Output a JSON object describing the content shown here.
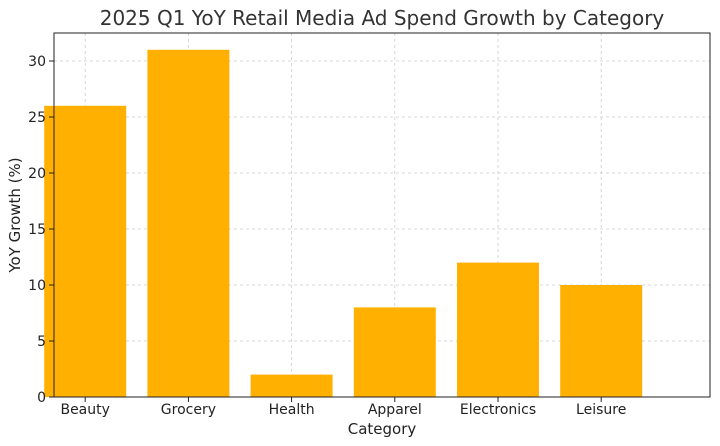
{
  "chart_data": {
    "type": "bar",
    "title": "2025 Q1 YoY Retail Media Ad Spend Growth by Category",
    "xlabel": "Category",
    "ylabel": "YoY Growth (%)",
    "categories": [
      "Beauty",
      "Grocery",
      "Health",
      "Apparel",
      "Electronics",
      "Leisure"
    ],
    "values": [
      26,
      31,
      2,
      8,
      12,
      10
    ],
    "yticks": [
      0,
      5,
      10,
      15,
      20,
      25,
      30
    ],
    "ylim": [
      0,
      32.5
    ],
    "grid": true,
    "bar_color": "#FFB000"
  }
}
